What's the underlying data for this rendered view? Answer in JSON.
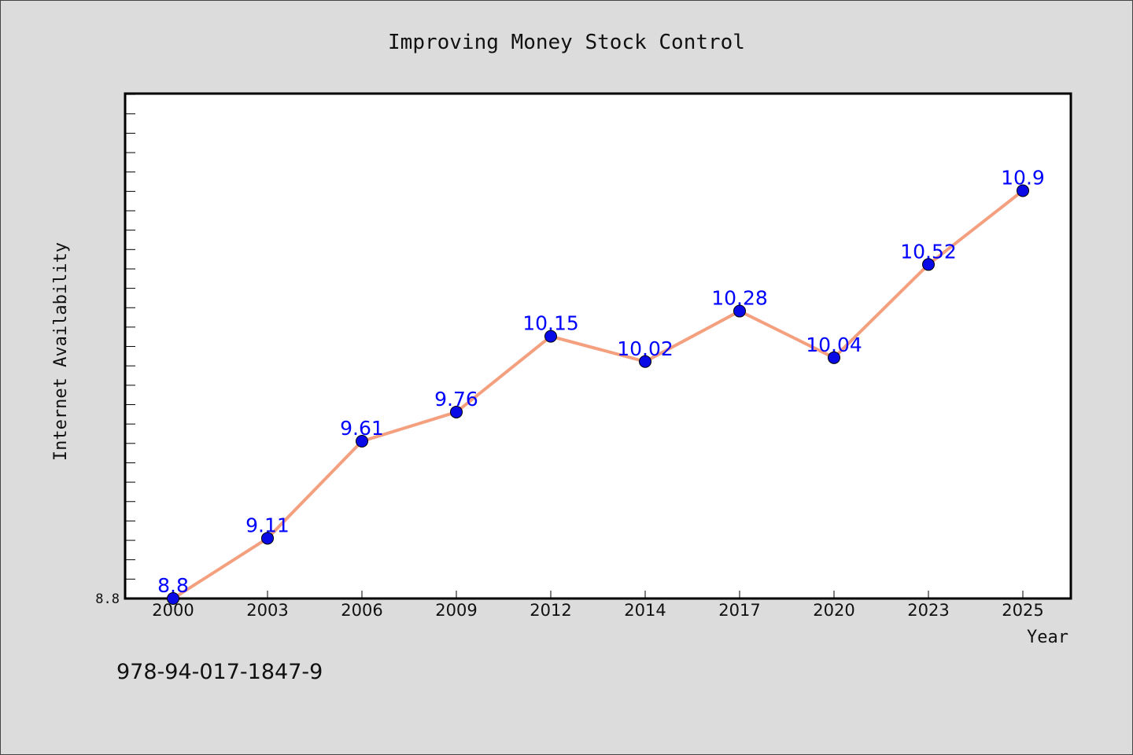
{
  "chart_data": {
    "type": "line",
    "title": "Improving Money Stock Control",
    "xlabel": "Year",
    "ylabel": "Internet Availability",
    "categories": [
      "2000",
      "2003",
      "2006",
      "2009",
      "2012",
      "2014",
      "2017",
      "2020",
      "2023",
      "2025"
    ],
    "series": [
      {
        "values": [
          8.8,
          9.11,
          9.61,
          9.76,
          10.15,
          10.02,
          10.28,
          10.04,
          10.52,
          10.9
        ],
        "labels": [
          "8.8",
          "9.11",
          "9.61",
          "9.76",
          "10.15",
          "10.02",
          "10.28",
          "10.04",
          "10.52",
          "10.9"
        ],
        "line_color": "#f4a07f",
        "marker_color": "#0a0ae6",
        "label_color": "#0000ff"
      }
    ],
    "yticks": [
      "8.8"
    ],
    "ylim": [
      8.8,
      11.4
    ],
    "grid": false,
    "legend": "none"
  },
  "footnote": "978-94-017-1847-9",
  "colors": {
    "background": "#dcdcdc",
    "plot_background": "#ffffff",
    "axis": "#000000"
  }
}
